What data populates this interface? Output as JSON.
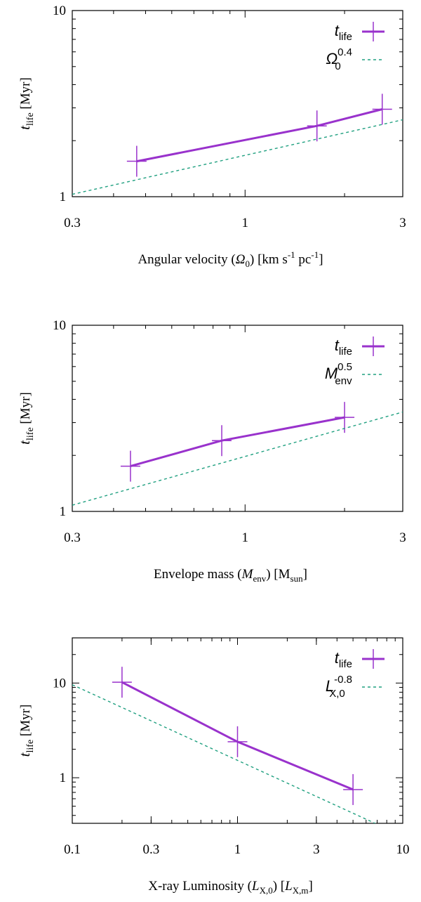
{
  "chart_data": [
    {
      "type": "line",
      "scale": {
        "x": "log",
        "y": "log"
      },
      "xlim": [
        0.3,
        3
      ],
      "ylim": [
        1,
        10
      ],
      "xticks": [
        {
          "value": 0.3,
          "label": "0.3"
        },
        {
          "value": 1,
          "label": "1"
        },
        {
          "value": 3,
          "label": "3"
        }
      ],
      "yticks": [
        {
          "value": 1,
          "label": "1"
        },
        {
          "value": 10,
          "label": "10"
        }
      ],
      "xlabel": {
        "before": "Angular velocity (",
        "sym": "Ω",
        "sub": "0",
        "after": ") [km s",
        "sup1": "-1",
        "mid": " pc",
        "sup2": "-1",
        "end": "]"
      },
      "ylabel": {
        "sym": "t",
        "sub": "life",
        "after": " [Myr]"
      },
      "legend_position": "top-right",
      "series": [
        {
          "legend": {
            "sym": "t",
            "sub": "life"
          },
          "color": "#9932cc",
          "style": "solid",
          "markers": "crosses with error bars",
          "x": [
            0.47,
            1.65,
            2.6
          ],
          "y": [
            1.55,
            2.4,
            2.95
          ]
        },
        {
          "legend": {
            "sym": "Ω",
            "sub": "0",
            "sup": "0.4"
          },
          "color": "#20a080",
          "style": "dashed",
          "markers": "none",
          "x": [
            0.3,
            3
          ],
          "y": [
            1.03,
            2.59
          ]
        }
      ]
    },
    {
      "type": "line",
      "scale": {
        "x": "log",
        "y": "log"
      },
      "xlim": [
        0.3,
        3
      ],
      "ylim": [
        1,
        10
      ],
      "xticks": [
        {
          "value": 0.3,
          "label": "0.3"
        },
        {
          "value": 1,
          "label": "1"
        },
        {
          "value": 3,
          "label": "3"
        }
      ],
      "yticks": [
        {
          "value": 1,
          "label": "1"
        },
        {
          "value": 10,
          "label": "10"
        }
      ],
      "xlabel": {
        "before": "Envelope mass (",
        "sym": "M",
        "sub": "env",
        "after": ") [M",
        "sub2": "sun",
        "end": "]"
      },
      "ylabel": {
        "sym": "t",
        "sub": "life",
        "after": " [Myr]"
      },
      "legend_position": "top-right",
      "series": [
        {
          "legend": {
            "sym": "t",
            "sub": "life"
          },
          "color": "#9932cc",
          "style": "solid",
          "markers": "crosses with error bars",
          "x": [
            0.45,
            0.85,
            2.0
          ],
          "y": [
            1.75,
            2.4,
            3.2
          ]
        },
        {
          "legend": {
            "sym": "M",
            "sub": "env",
            "sup": "0.5"
          },
          "color": "#20a080",
          "style": "dashed",
          "markers": "none",
          "x": [
            0.3,
            3
          ],
          "y": [
            1.08,
            3.42
          ]
        }
      ]
    },
    {
      "type": "line",
      "scale": {
        "x": "log",
        "y": "log"
      },
      "xlim": [
        0.1,
        10
      ],
      "ylim": [
        0.33,
        30
      ],
      "xticks": [
        {
          "value": 0.1,
          "label": "0.1"
        },
        {
          "value": 0.3,
          "label": "0.3"
        },
        {
          "value": 1,
          "label": "1"
        },
        {
          "value": 3,
          "label": "3"
        },
        {
          "value": 10,
          "label": "10"
        }
      ],
      "yticks": [
        {
          "value": 1,
          "label": "1"
        },
        {
          "value": 10,
          "label": "10"
        }
      ],
      "xlabel": {
        "before": "X-ray Luminosity (",
        "sym": "L",
        "sub": "X,0",
        "after": ") [",
        "sym2": "L",
        "sub2": "X,m",
        "end": "]"
      },
      "ylabel": {
        "sym": "t",
        "sub": "life",
        "after": " [Myr]"
      },
      "legend_position": "top-right",
      "series": [
        {
          "legend": {
            "sym": "t",
            "sub": "life"
          },
          "color": "#9932cc",
          "style": "solid",
          "markers": "crosses with error bars",
          "x": [
            0.2,
            1.0,
            5.0
          ],
          "y": [
            10.2,
            2.4,
            0.75
          ]
        },
        {
          "legend": {
            "sym": "L",
            "sub": "X,0",
            "sup": "-0.8"
          },
          "color": "#20a080",
          "style": "dashed",
          "markers": "none",
          "x": [
            0.1,
            7.5
          ],
          "y": [
            9.6,
            0.305
          ]
        }
      ]
    }
  ]
}
